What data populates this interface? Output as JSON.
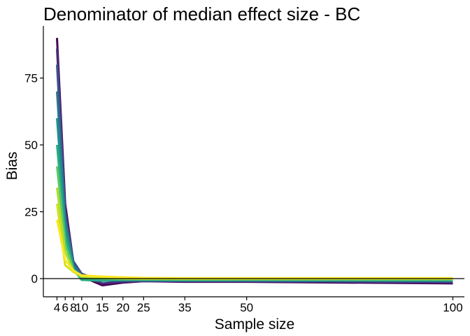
{
  "chart_data": {
    "type": "line",
    "title": "Denominator of median effect size - BC",
    "xlabel": "Sample size",
    "ylabel": "Bias",
    "xlim": [
      0.7,
      102.8
    ],
    "ylim": [
      -6.8,
      94.5
    ],
    "x_ticks": [
      4,
      6,
      8,
      10,
      15,
      20,
      25,
      35,
      50,
      100
    ],
    "y_ticks": [
      0,
      25,
      50,
      75
    ],
    "reference_line_y": 0,
    "grid": false,
    "legend": "none",
    "x": [
      4,
      6,
      8,
      10,
      15,
      20,
      25,
      35,
      50,
      100
    ],
    "series": [
      {
        "color": "#440154",
        "values": [
          90,
          28,
          6,
          0.8,
          -2.5,
          -1.5,
          -1.0,
          -1.2,
          -1.2,
          -1.8
        ]
      },
      {
        "color": "#472d7b",
        "values": [
          86,
          26,
          5.5,
          1.2,
          -1.8,
          -1.2,
          -0.9,
          -1.0,
          -1.0,
          -1.4
        ]
      },
      {
        "color": "#3b528b",
        "values": [
          80,
          24,
          6.5,
          1.8,
          -0.8,
          -0.8,
          -0.8,
          -0.9,
          -0.9,
          -1.1
        ]
      },
      {
        "color": "#2c728e",
        "values": [
          70,
          22,
          5,
          1.2,
          -0.5,
          -0.6,
          -0.6,
          -0.7,
          -0.7,
          -0.9
        ]
      },
      {
        "color": "#21918c",
        "values": [
          60,
          19,
          4.5,
          -0.5,
          -0.8,
          -0.5,
          -0.5,
          -0.6,
          -0.5,
          -0.7
        ]
      },
      {
        "color": "#28ae80",
        "values": [
          50,
          16,
          3.5,
          -0.5,
          -0.5,
          -0.4,
          -0.4,
          -0.4,
          -0.4,
          -0.5
        ]
      },
      {
        "color": "#5ec962",
        "values": [
          42,
          13,
          3.2,
          0.2,
          0.0,
          -0.2,
          -0.2,
          -0.3,
          -0.3,
          -0.3
        ]
      },
      {
        "color": "#addc30",
        "values": [
          34,
          10,
          2.8,
          0.8,
          0.3,
          0.0,
          -0.1,
          -0.1,
          -0.1,
          -0.1
        ]
      },
      {
        "color": "#d2e21b",
        "values": [
          28,
          5,
          2.5,
          1.0,
          0.6,
          0.2,
          0.0,
          0.0,
          0.0,
          0.0
        ]
      },
      {
        "color": "#fde725",
        "values": [
          22,
          7,
          3.0,
          1.2,
          0.8,
          0.5,
          0.3,
          0.2,
          0.2,
          0.2
        ]
      }
    ]
  }
}
